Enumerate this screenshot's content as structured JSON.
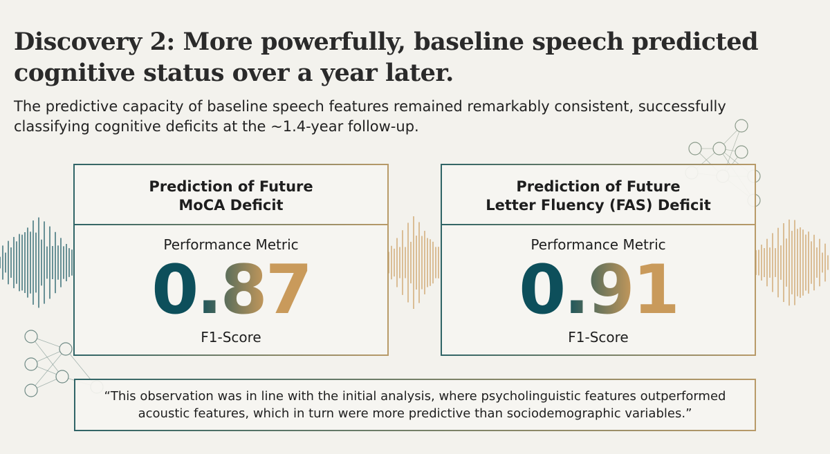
{
  "title": "Discovery 2: More powerfully, baseline speech predicted cognitive status over a year later.",
  "subtitle": "The predictive capacity of baseline speech features remained remarkably consistent, successfully classifying cognitive deficits at the ~1.4-year follow-up.",
  "cards": [
    {
      "heading_line1": "Prediction of Future",
      "heading_line2": "MoCA Deficit",
      "metric_label": "Performance Metric",
      "value": "0.87",
      "unit": "F1-Score"
    },
    {
      "heading_line1": "Prediction of Future",
      "heading_line2": "Letter Fluency (FAS) Deficit",
      "metric_label": "Performance Metric",
      "value": "0.91",
      "unit": "F1-Score"
    }
  ],
  "quote": "“This observation was in line with the initial analysis, where psycholinguistic features outperformed acoustic features, which in turn were more predictive than sociodemographic variables.”",
  "colors": {
    "background": "#f3f2ed",
    "teal": "#0d4f5b",
    "gold": "#c99a5b"
  },
  "decorations": [
    "soundwave",
    "neural-network"
  ]
}
